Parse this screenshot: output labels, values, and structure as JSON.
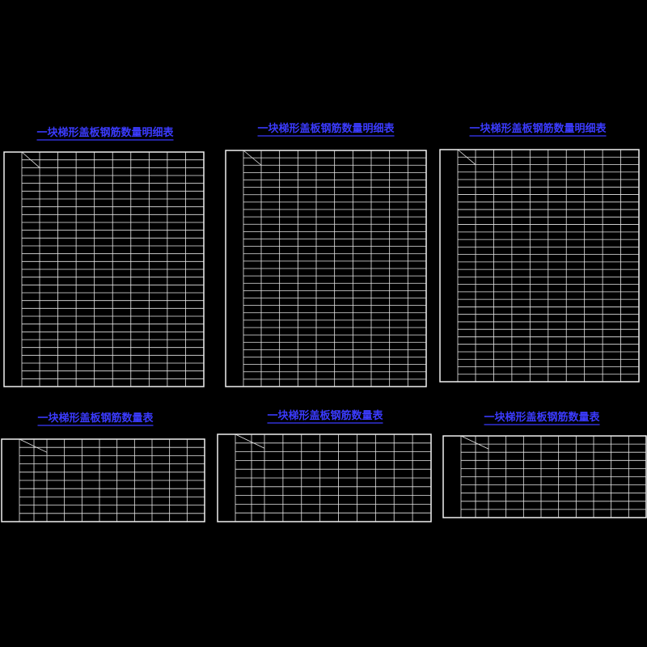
{
  "tables": [
    {
      "title": "一块梯形盖板钢筋数量明细表"
    },
    {
      "title": "一块梯形盖板钢筋数量明细表"
    },
    {
      "title": "一块梯形盖板钢筋数量明细表"
    },
    {
      "title": "一块梯形盖板钢筋数量表"
    },
    {
      "title": "一块梯形盖板钢筋数量表"
    },
    {
      "title": "一块梯形盖板钢筋数量表"
    }
  ]
}
